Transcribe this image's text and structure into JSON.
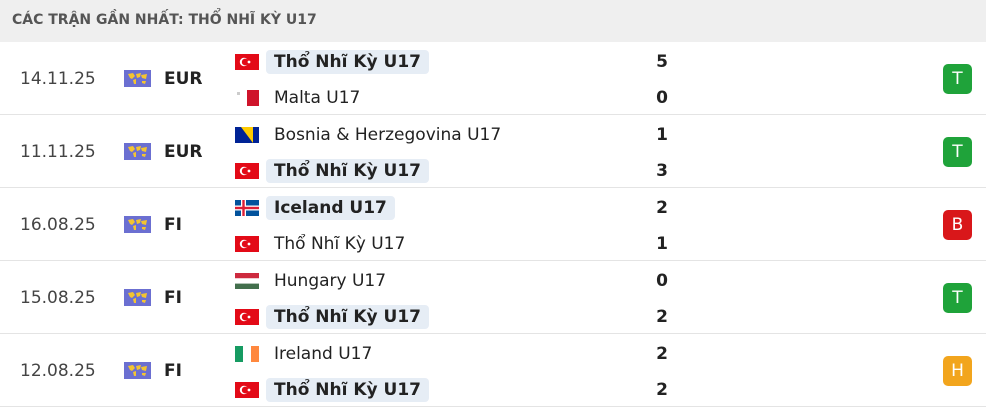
{
  "header": {
    "title": "CÁC TRẬN GẦN NHẤT: THỔ NHĨ KỲ U17"
  },
  "matches": [
    {
      "date": "14.11.25",
      "competition": "EUR",
      "home": {
        "team": "Thổ Nhĩ Kỳ U17",
        "score": 5
      },
      "away": {
        "team": "Malta U17",
        "score": 0
      },
      "result": "T"
    },
    {
      "date": "11.11.25",
      "competition": "EUR",
      "home": {
        "team": "Bosnia & Herzegovina U17",
        "score": 1
      },
      "away": {
        "team": "Thổ Nhĩ Kỳ U17",
        "score": 3
      },
      "result": "T"
    },
    {
      "date": "16.08.25",
      "competition": "FI",
      "home": {
        "team": "Iceland U17",
        "score": 2
      },
      "away": {
        "team": "Thổ Nhĩ Kỳ U17",
        "score": 1
      },
      "result": "B"
    },
    {
      "date": "15.08.25",
      "competition": "FI",
      "home": {
        "team": "Hungary U17",
        "score": 0
      },
      "away": {
        "team": "Thổ Nhĩ Kỳ U17",
        "score": 2
      },
      "result": "T"
    },
    {
      "date": "12.08.25",
      "competition": "FI",
      "home": {
        "team": "Ireland U17",
        "score": 2
      },
      "away": {
        "team": "Thổ Nhĩ Kỳ U17",
        "score": 2
      },
      "result": "H"
    }
  ]
}
